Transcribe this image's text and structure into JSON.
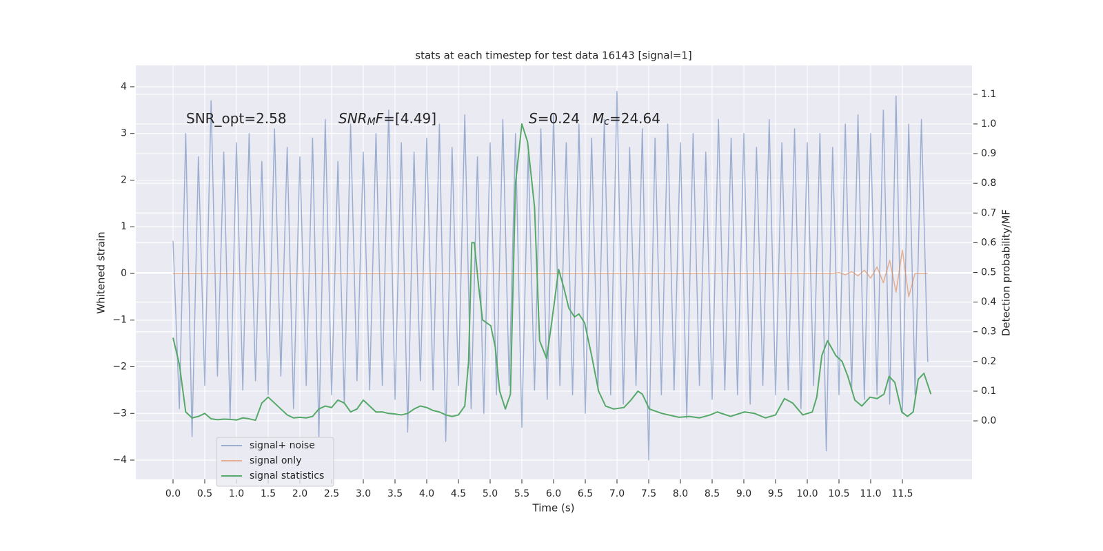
{
  "chart_data": {
    "type": "line",
    "title": "stats at each timestep for test data 16143 [signal=1]",
    "xlabel": "Time (s)",
    "ylabel": "Whitened strain",
    "y2label": "Detection probability/MF",
    "annotations": [
      {
        "parts": [
          {
            "text": "SNR_opt=2.58"
          }
        ]
      },
      {
        "parts": [
          {
            "text": "SNR",
            "italic": true
          },
          {
            "text": "M",
            "italic": true,
            "sub": true
          },
          {
            "text": "F",
            "italic": true
          },
          {
            "text": "=[4.49]"
          }
        ]
      },
      {
        "parts": [
          {
            "text": "S",
            "italic": true
          },
          {
            "text": "=0.24"
          }
        ]
      },
      {
        "parts": [
          {
            "text": "M",
            "italic": true
          },
          {
            "text": "c",
            "italic": true,
            "sub": true
          },
          {
            "text": "=24.64"
          }
        ]
      }
    ],
    "x": [
      0.0,
      0.1,
      0.2,
      0.3,
      0.4,
      0.5,
      0.6,
      0.7,
      0.8,
      0.9,
      1.0,
      1.1,
      1.2,
      1.3,
      1.4,
      1.5,
      1.6,
      1.7,
      1.8,
      1.9,
      2.0,
      2.1,
      2.2,
      2.3,
      2.4,
      2.5,
      2.6,
      2.7,
      2.8,
      2.9,
      3.0,
      3.1,
      3.2,
      3.3,
      3.4,
      3.5,
      3.6,
      3.7,
      3.8,
      3.9,
      4.0,
      4.1,
      4.2,
      4.3,
      4.4,
      4.5,
      4.6,
      4.7,
      4.8,
      4.9,
      5.0,
      5.1,
      5.2,
      5.3,
      5.4,
      5.5,
      5.6,
      5.7,
      5.8,
      5.9,
      6.0,
      6.1,
      6.2,
      6.3,
      6.4,
      6.5,
      6.6,
      6.7,
      6.8,
      6.9,
      7.0,
      7.1,
      7.2,
      7.3,
      7.4,
      7.5,
      7.6,
      7.7,
      7.8,
      7.9,
      8.0,
      8.1,
      8.2,
      8.3,
      8.4,
      8.5,
      8.6,
      8.7,
      8.8,
      8.9,
      9.0,
      9.1,
      9.2,
      9.3,
      9.4,
      9.5,
      9.6,
      9.7,
      9.8,
      9.9,
      10.0,
      10.1,
      10.2,
      10.3,
      10.4,
      10.5,
      10.6,
      10.7,
      10.8,
      10.9,
      11.0,
      11.1,
      11.2,
      11.3,
      11.4,
      11.5,
      11.6,
      11.7,
      11.8,
      11.9
    ],
    "series": [
      {
        "name": "signal+ noise",
        "color": "#4c72b0",
        "opacity": 0.5,
        "values": [
          0.7,
          -2.9,
          3.0,
          -3.5,
          2.5,
          -2.4,
          3.7,
          -2.2,
          2.6,
          -3.1,
          2.8,
          -2.5,
          3.0,
          -2.3,
          2.4,
          -2.6,
          3.1,
          -2.2,
          2.7,
          -2.9,
          2.5,
          -2.4,
          2.9,
          -3.5,
          3.3,
          -2.6,
          2.4,
          -2.8,
          3.2,
          -2.3,
          2.6,
          -2.5,
          3.0,
          -2.4,
          3.5,
          -2.7,
          2.8,
          -3.4,
          2.6,
          -2.3,
          2.9,
          -2.5,
          3.2,
          -3.6,
          2.7,
          -2.4,
          3.4,
          -2.9,
          2.5,
          -3.0,
          2.8,
          -2.6,
          3.3,
          -2.4,
          3.0,
          -3.3,
          2.6,
          -2.5,
          3.1,
          -2.7,
          3.4,
          -2.4,
          2.8,
          -2.6,
          3.2,
          -3.0,
          2.9,
          -2.5,
          3.3,
          -2.6,
          3.9,
          -2.8,
          2.7,
          -2.4,
          3.1,
          -4.0,
          2.9,
          -2.6,
          3.2,
          -2.5,
          2.8,
          -3.1,
          3.0,
          -2.4,
          2.6,
          -2.7,
          3.3,
          -2.5,
          2.9,
          -2.6,
          3.0,
          -2.8,
          2.7,
          -2.4,
          3.3,
          -2.6,
          2.8,
          -2.5,
          3.1,
          -2.9,
          2.8,
          -2.4,
          3.0,
          -3.8,
          2.7,
          -2.6,
          3.2,
          -2.5,
          3.4,
          -2.7,
          3.0,
          -2.6,
          3.5,
          -2.8,
          3.8,
          -3.0,
          3.2,
          -2.6,
          3.3,
          -1.9
        ]
      },
      {
        "name": "signal only",
        "color": "#dd8452",
        "opacity": 0.6,
        "values": [
          0,
          0,
          0,
          0,
          0,
          0,
          0,
          0,
          0,
          0,
          0,
          0,
          0,
          0,
          0,
          0,
          0,
          0,
          0,
          0,
          0,
          0,
          0,
          0,
          0,
          0,
          0,
          0,
          0,
          0,
          0,
          0,
          0,
          0,
          0,
          0,
          0,
          0,
          0,
          0,
          0,
          0,
          0,
          0,
          0,
          0,
          0,
          0,
          0,
          0,
          0,
          0,
          0,
          0,
          0,
          0,
          0,
          0,
          0,
          0,
          0,
          0,
          0,
          0,
          0,
          0,
          0,
          0,
          0,
          0,
          0,
          0,
          0,
          0,
          0,
          0,
          0,
          0,
          0,
          0,
          0,
          0,
          0,
          0,
          0,
          0,
          0,
          0,
          0,
          0,
          0,
          0,
          0,
          0,
          0,
          0,
          0,
          0,
          0,
          0,
          0,
          0,
          0,
          0,
          0,
          0.02,
          -0.03,
          0.04,
          -0.05,
          0.07,
          -0.1,
          0.14,
          -0.2,
          0.28,
          -0.4,
          0.5,
          -0.5,
          0,
          0,
          0
        ]
      },
      {
        "name": "signal statistics",
        "color": "#55a868",
        "axis": "y2",
        "x": [
          0.0,
          0.1,
          0.2,
          0.3,
          0.4,
          0.5,
          0.6,
          0.7,
          0.8,
          0.9,
          1.0,
          1.1,
          1.2,
          1.3,
          1.4,
          1.5,
          1.6,
          1.7,
          1.8,
          1.9,
          2.0,
          2.1,
          2.2,
          2.3,
          2.4,
          2.5,
          2.6,
          2.7,
          2.8,
          2.9,
          3.0,
          3.1,
          3.2,
          3.3,
          3.4,
          3.5,
          3.6,
          3.7,
          3.8,
          3.9,
          4.0,
          4.1,
          4.2,
          4.3,
          4.4,
          4.5,
          4.6,
          4.66,
          4.71,
          4.75,
          4.82,
          4.88,
          5.01,
          5.08,
          5.15,
          5.24,
          5.32,
          5.4,
          5.5,
          5.59,
          5.7,
          5.78,
          5.89,
          5.97,
          6.08,
          6.16,
          6.24,
          6.33,
          6.4,
          6.49,
          6.6,
          6.71,
          6.82,
          6.95,
          7.11,
          7.22,
          7.33,
          7.4,
          7.51,
          7.71,
          7.98,
          8.14,
          8.3,
          8.47,
          8.58,
          8.79,
          9.01,
          9.17,
          9.34,
          9.5,
          9.64,
          9.77,
          9.93,
          10.08,
          10.15,
          10.23,
          10.32,
          10.45,
          10.55,
          10.64,
          10.75,
          10.86,
          10.99,
          11.1,
          11.21,
          11.29,
          11.38,
          11.49,
          11.58,
          11.67,
          11.75,
          11.84,
          11.95
        ],
        "values": [
          0.28,
          0.19,
          0.03,
          0.01,
          0.015,
          0.025,
          0.007,
          0.004,
          0.006,
          0.005,
          0.003,
          0.01,
          0.007,
          0.002,
          0.06,
          0.08,
          0.06,
          0.04,
          0.02,
          0.01,
          0.012,
          0.01,
          0.015,
          0.04,
          0.05,
          0.045,
          0.07,
          0.06,
          0.03,
          0.04,
          0.07,
          0.05,
          0.03,
          0.03,
          0.025,
          0.023,
          0.02,
          0.025,
          0.04,
          0.05,
          0.045,
          0.035,
          0.03,
          0.02,
          0.015,
          0.02,
          0.05,
          0.2,
          0.6,
          0.6,
          0.45,
          0.34,
          0.32,
          0.25,
          0.1,
          0.04,
          0.09,
          0.8,
          1.0,
          0.94,
          0.72,
          0.27,
          0.21,
          0.33,
          0.51,
          0.45,
          0.38,
          0.35,
          0.36,
          0.33,
          0.22,
          0.1,
          0.05,
          0.04,
          0.045,
          0.07,
          0.1,
          0.09,
          0.04,
          0.025,
          0.012,
          0.015,
          0.01,
          0.02,
          0.03,
          0.015,
          0.03,
          0.025,
          0.01,
          0.02,
          0.075,
          0.06,
          0.02,
          0.03,
          0.08,
          0.22,
          0.27,
          0.22,
          0.2,
          0.15,
          0.07,
          0.05,
          0.08,
          0.075,
          0.09,
          0.15,
          0.13,
          0.03,
          0.015,
          0.03,
          0.14,
          0.16,
          0.09
        ]
      }
    ],
    "xlim": [
      -0.587,
      12.598
    ],
    "ylim": [
      -4.413,
      4.457
    ],
    "y2lim": [
      -0.197,
      1.197
    ],
    "xticks": [
      {
        "value": 0,
        "label": "0.0"
      },
      0.5,
      {
        "value": 1,
        "label": "1.0"
      },
      1.5,
      {
        "value": 2,
        "label": "2.0"
      },
      2.5,
      {
        "value": 3,
        "label": "3.0"
      },
      3.5,
      {
        "value": 4,
        "label": "4.0"
      },
      4.5,
      {
        "value": 5,
        "label": "5.0"
      },
      5.5,
      {
        "value": 6,
        "label": "6.0"
      },
      6.5,
      {
        "value": 7,
        "label": "7.0"
      },
      7.5,
      {
        "value": 8,
        "label": "8.0"
      },
      8.5,
      {
        "value": 9,
        "label": "9.0"
      },
      9.5,
      {
        "value": 10,
        "label": "10.0"
      },
      10.5,
      {
        "value": 11,
        "label": "11.0"
      },
      11.5
    ],
    "yticks": [
      {
        "value": -4,
        "label": "−4"
      },
      {
        "value": -3,
        "label": "−3"
      },
      {
        "value": -2,
        "label": "−2"
      },
      {
        "value": -1,
        "label": "−1"
      },
      0,
      1,
      2,
      3,
      4
    ],
    "y2ticks": [
      {
        "value": 0,
        "label": "0.0"
      },
      0.1,
      0.2,
      0.3,
      0.4,
      0.5,
      0.6,
      0.7,
      0.8,
      0.9,
      {
        "value": 1,
        "label": "1.0"
      },
      1.1
    ],
    "grid": true,
    "legend": "lower left"
  }
}
